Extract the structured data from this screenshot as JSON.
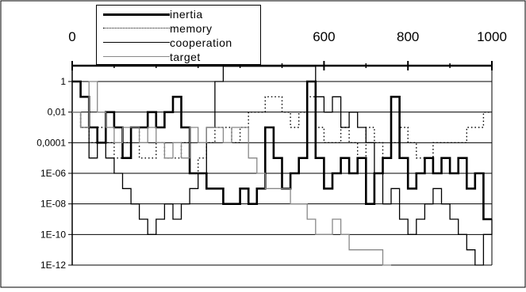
{
  "chart_data": {
    "type": "line",
    "title": "",
    "xlabel": "",
    "ylabel": "",
    "xlim": [
      0,
      1000
    ],
    "ylim_exponents": [
      -12,
      1
    ],
    "y_scale": "log",
    "x_tick_labels": [
      "0",
      "600",
      "800",
      "1000"
    ],
    "x_tick_values": [
      0,
      600,
      800,
      1000
    ],
    "y_tick_labels": [
      "1",
      "0,01",
      "0,0001",
      "1E-06",
      "1E-08",
      "1E-10",
      "1E-12"
    ],
    "y_tick_values": [
      1,
      0.01,
      0.0001,
      1e-06,
      1e-08,
      1e-10,
      1e-12
    ],
    "grid": "horizontal",
    "legend_position": "top-left",
    "series": [
      {
        "name": "inertia",
        "color": "#000000",
        "style": "thick",
        "x": [
          0,
          20,
          40,
          60,
          80,
          100,
          120,
          140,
          160,
          180,
          200,
          220,
          240,
          260,
          280,
          300,
          320,
          340,
          360,
          380,
          400,
          420,
          440,
          460,
          480,
          500,
          520,
          540,
          560,
          580,
          600,
          620,
          640,
          660,
          680,
          700,
          720,
          740,
          760,
          780,
          800,
          820,
          840,
          860,
          880,
          900,
          920,
          940,
          960,
          980,
          1000
        ],
        "y": [
          1,
          0.1,
          0.001,
          0.0001,
          0.01,
          0.001,
          1e-05,
          0.001,
          0.001,
          0.01,
          0.001,
          0.01,
          0.1,
          0.001,
          1e-06,
          1e-06,
          1e-07,
          1e-07,
          1e-08,
          1e-08,
          1e-07,
          1e-08,
          1e-07,
          0.001,
          1e-05,
          1e-07,
          1e-06,
          1e-05,
          1,
          1e-05,
          1e-07,
          1e-06,
          1e-05,
          1e-06,
          1e-05,
          1e-08,
          1e-06,
          1e-05,
          0.1,
          1e-05,
          1e-07,
          1e-06,
          1e-05,
          1e-06,
          1e-05,
          1e-06,
          1e-05,
          1e-07,
          1e-06,
          1e-09,
          1e-09
        ]
      },
      {
        "name": "memory",
        "color": "#000000",
        "style": "dotted",
        "x": [
          0,
          20,
          40,
          60,
          80,
          100,
          120,
          140,
          160,
          180,
          200,
          220,
          240,
          260,
          280,
          300,
          320,
          340,
          360,
          380,
          400,
          420,
          440,
          460,
          480,
          500,
          520,
          540,
          560,
          580,
          600,
          620,
          640,
          660,
          680,
          700,
          720,
          740,
          760,
          780,
          800,
          820,
          840,
          860,
          880,
          900,
          920,
          940,
          960,
          980,
          1000
        ],
        "y": [
          0.01,
          0.001,
          0.0001,
          0.001,
          0.0001,
          1e-05,
          0.0001,
          0.001,
          1e-05,
          1e-05,
          0.0001,
          1e-05,
          1e-05,
          0.0001,
          1e-06,
          1e-05,
          0.0001,
          0.001,
          0.001,
          0.0001,
          0.001,
          0.01,
          0.01,
          0.1,
          0.1,
          0.01,
          0.001,
          0.01,
          0.1,
          0.001,
          0.0001,
          0.0001,
          0.001,
          0.0001,
          1e-05,
          0.001,
          0.0001,
          1e-05,
          0.0001,
          0.001,
          0.0001,
          1e-05,
          1e-05,
          0.0001,
          0.0001,
          0.0001,
          0.0001,
          0.001,
          0.001,
          0.01,
          0.01
        ]
      },
      {
        "name": "cooperation",
        "color": "#000000",
        "style": "thin",
        "x": [
          0,
          20,
          40,
          60,
          80,
          100,
          120,
          140,
          160,
          180,
          200,
          220,
          240,
          260,
          280,
          300,
          320,
          340,
          360,
          380,
          400,
          420,
          440,
          460,
          480,
          500,
          520,
          540,
          560,
          580,
          600,
          620,
          640,
          660,
          680,
          700,
          720,
          740,
          760,
          780,
          800,
          820,
          840,
          860,
          880,
          900,
          920,
          940,
          960,
          980,
          1000
        ],
        "y": [
          0.01,
          0.001,
          1e-05,
          0.0001,
          1e-05,
          1e-06,
          1e-07,
          1e-08,
          1e-09,
          1e-10,
          1e-09,
          1e-08,
          1e-09,
          1e-08,
          1e-07,
          1e-06,
          0.001,
          1,
          10,
          10,
          10,
          10,
          10,
          10,
          10,
          10,
          10,
          10,
          10,
          0.1,
          0.01,
          0.1,
          0.001,
          0.01,
          0.001,
          0.0001,
          1e-06,
          1e-08,
          1e-07,
          1e-09,
          1e-10,
          1e-09,
          1e-08,
          1e-07,
          1e-08,
          1e-09,
          1e-10,
          1e-11,
          1e-12,
          1e-10,
          1e-09
        ]
      },
      {
        "name": "target",
        "color": "#888888",
        "style": "thin",
        "x": [
          0,
          20,
          40,
          60,
          80,
          100,
          120,
          140,
          160,
          180,
          200,
          220,
          240,
          260,
          280,
          300,
          320,
          340,
          360,
          380,
          400,
          420,
          440,
          460,
          480,
          500,
          520,
          540,
          560,
          580,
          600,
          620,
          640,
          660,
          680,
          700,
          720,
          740,
          760
        ],
        "y": [
          0.01,
          0.001,
          1,
          0.01,
          0.001,
          0.0001,
          0.001,
          0.001,
          0.0001,
          0.001,
          0.0001,
          1e-05,
          0.0001,
          1e-05,
          0.001,
          0.0001,
          0.001,
          0.001,
          0.0001,
          0.001,
          0.001,
          1e-05,
          1e-06,
          1e-07,
          1e-07,
          1e-07,
          1e-08,
          1e-08,
          1e-09,
          1e-10,
          1e-10,
          1e-09,
          1e-10,
          1e-11,
          1e-11,
          1e-11,
          1e-11,
          1e-12,
          1e-12
        ]
      }
    ]
  }
}
